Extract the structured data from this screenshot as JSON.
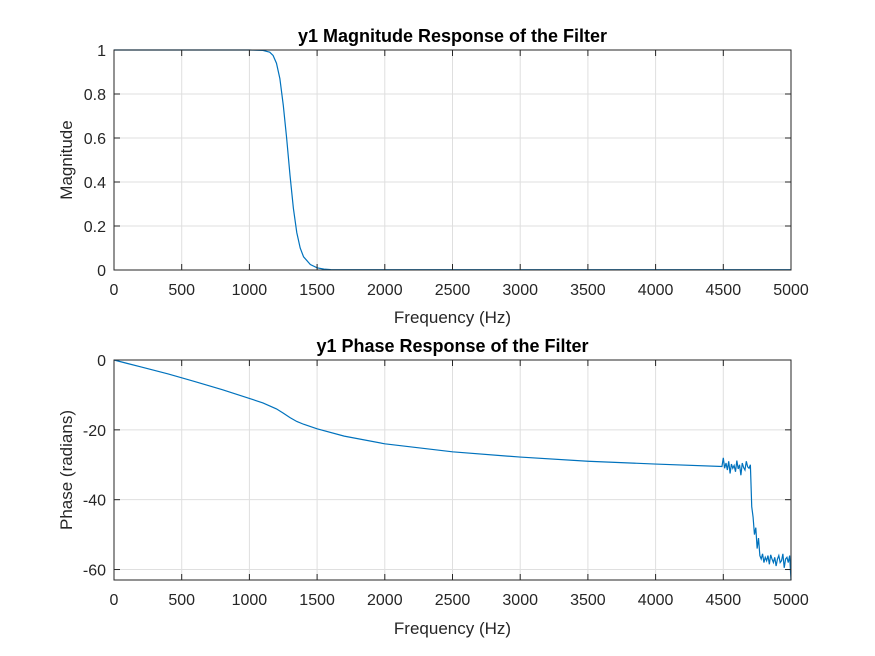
{
  "chart_data": [
    {
      "type": "line",
      "title": "y1 Magnitude Response of the Filter",
      "xlabel": "Frequency (Hz)",
      "ylabel": "Magnitude",
      "xlim": [
        0,
        5000
      ],
      "ylim": [
        0,
        1
      ],
      "xticks": [
        0,
        500,
        1000,
        1500,
        2000,
        2500,
        3000,
        3500,
        4000,
        4500,
        5000
      ],
      "xtick_labels": [
        "0",
        "500",
        "1000",
        "1500",
        "2000",
        "2500",
        "3000",
        "3500",
        "4000",
        "4500",
        "5000"
      ],
      "yticks": [
        0,
        0.2,
        0.4,
        0.6,
        0.8,
        1
      ],
      "ytick_labels": [
        "0",
        "0.2",
        "0.4",
        "0.6",
        "0.8",
        "1"
      ],
      "grid": true,
      "series_color": "#0072bd",
      "series": [
        {
          "x": [
            0,
            500,
            1000,
            1100,
            1150,
            1175,
            1200,
            1225,
            1250,
            1275,
            1300,
            1325,
            1350,
            1375,
            1400,
            1450,
            1500,
            1550,
            1600,
            2000,
            3000,
            4000,
            5000
          ],
          "y": [
            1,
            1,
            1,
            0.998,
            0.99,
            0.975,
            0.94,
            0.87,
            0.75,
            0.6,
            0.43,
            0.28,
            0.17,
            0.1,
            0.06,
            0.025,
            0.01,
            0.004,
            0.002,
            0.001,
            0.001,
            0.001,
            0.001
          ]
        }
      ]
    },
    {
      "type": "line",
      "title": "y1 Phase Response of the Filter",
      "xlabel": "Frequency (Hz)",
      "ylabel": "Phase (radians)",
      "xlim": [
        0,
        5000
      ],
      "ylim": [
        -63,
        0
      ],
      "xticks": [
        0,
        500,
        1000,
        1500,
        2000,
        2500,
        3000,
        3500,
        4000,
        4500,
        5000
      ],
      "xtick_labels": [
        "0",
        "500",
        "1000",
        "1500",
        "2000",
        "2500",
        "3000",
        "3500",
        "4000",
        "4500",
        "5000"
      ],
      "yticks": [
        0,
        -20,
        -40,
        -60
      ],
      "ytick_labels": [
        "0",
        "-20",
        "-40",
        "-60"
      ],
      "grid": true,
      "series_color": "#0072bd",
      "series": [
        {
          "x": [
            0,
            100,
            200,
            400,
            600,
            800,
            1000,
            1100,
            1200,
            1250,
            1300,
            1350,
            1400,
            1500,
            1700,
            2000,
            2500,
            3000,
            3500,
            4000,
            4490,
            4500,
            4510,
            4520,
            4530,
            4540,
            4550,
            4560,
            4570,
            4580,
            4590,
            4600,
            4610,
            4620,
            4630,
            4640,
            4650,
            4660,
            4670,
            4680,
            4690,
            4700,
            4705,
            4710,
            4720,
            4730,
            4740,
            4750,
            4760,
            4770,
            4780,
            4790,
            4800,
            4810,
            4820,
            4830,
            4840,
            4850,
            4860,
            4870,
            4880,
            4890,
            4900,
            4910,
            4920,
            4930,
            4940,
            4950,
            4960,
            4970,
            4980,
            4990,
            5000
          ],
          "y": [
            0,
            -1,
            -2,
            -4,
            -6.2,
            -8.5,
            -11,
            -12.3,
            -14,
            -15.2,
            -16.5,
            -17.6,
            -18.4,
            -19.7,
            -21.8,
            -24,
            -26.3,
            -27.8,
            -29,
            -29.8,
            -30.5,
            -28,
            -31,
            -29.5,
            -31.5,
            -29,
            -32.5,
            -29.8,
            -31,
            -30.2,
            -32,
            -28.8,
            -31.2,
            -30,
            -33,
            -29.5,
            -30.8,
            -31.5,
            -29,
            -30.6,
            -31,
            -30,
            -36,
            -42,
            -45,
            -50,
            -48,
            -54,
            -51,
            -56,
            -57,
            -55.5,
            -58,
            -56.5,
            -57.5,
            -56,
            -58.5,
            -55.8,
            -57,
            -58,
            -56.5,
            -59,
            -57,
            -56,
            -58,
            -57.5,
            -55.5,
            -59.5,
            -57,
            -56.5,
            -58,
            -56,
            -63
          ]
        }
      ]
    }
  ]
}
